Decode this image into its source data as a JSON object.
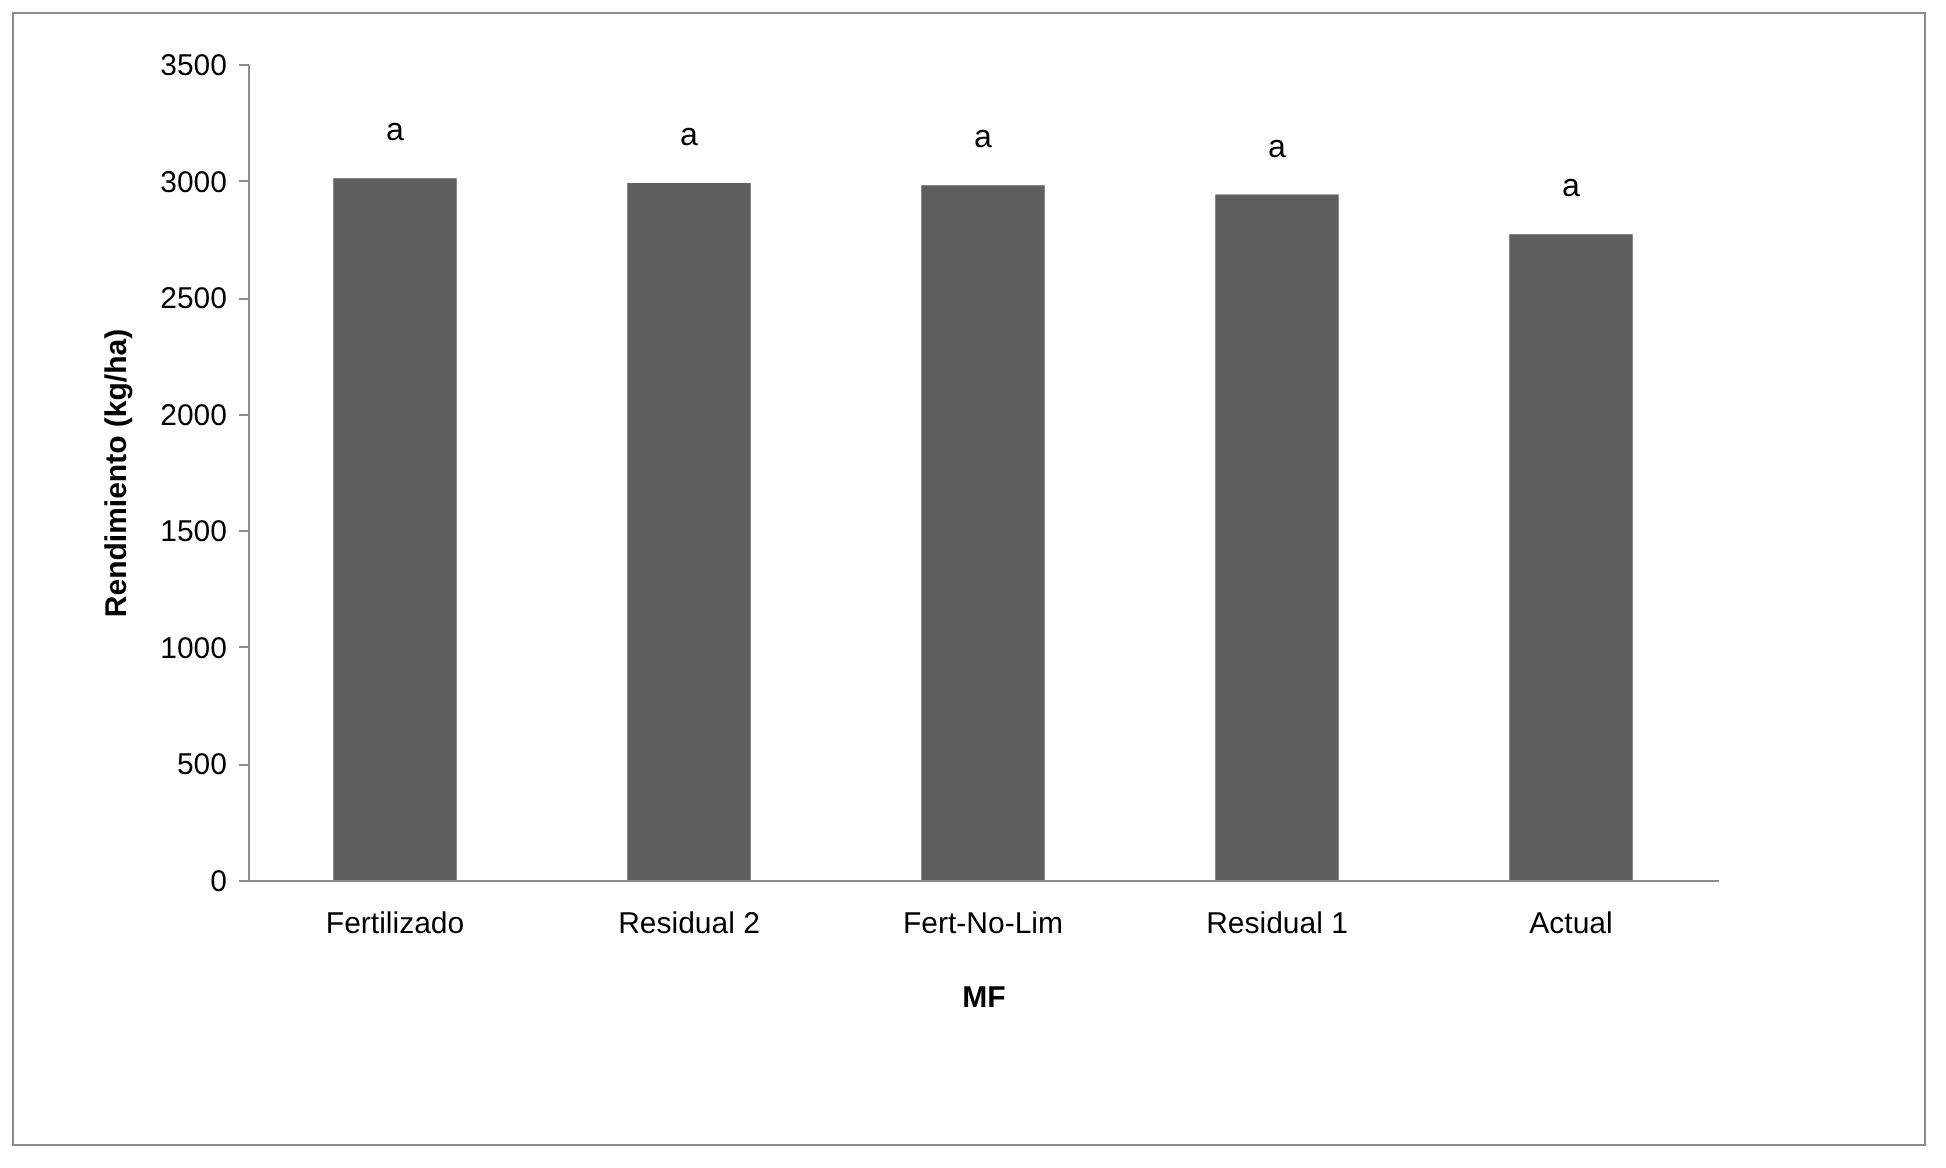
{
  "chart_data": {
    "type": "bar",
    "xlabel": "MF",
    "ylabel": "Rendimiento (kg/ha)",
    "categories": [
      "Fertilizado",
      "Residual 2",
      "Fert-No-Lim",
      "Residual 1",
      "Actual"
    ],
    "values": [
      3010,
      2990,
      2980,
      2940,
      2770
    ],
    "color": "#5f5f5f",
    "ylim": [
      0,
      3500
    ],
    "yticks": [
      0,
      500,
      1000,
      1500,
      2000,
      2500,
      3000,
      3500
    ],
    "grid": false,
    "annotations": [
      {
        "text": "a",
        "x": "Fertilizado",
        "y": 3010
      },
      {
        "text": "a",
        "x": "Residual 2",
        "y": 2990
      },
      {
        "text": "a",
        "x": "Fert-No-Lim",
        "y": 2980
      },
      {
        "text": "a",
        "x": "Residual 1",
        "y": 2940
      },
      {
        "text": "a",
        "x": "Actual",
        "y": 2770
      }
    ]
  }
}
